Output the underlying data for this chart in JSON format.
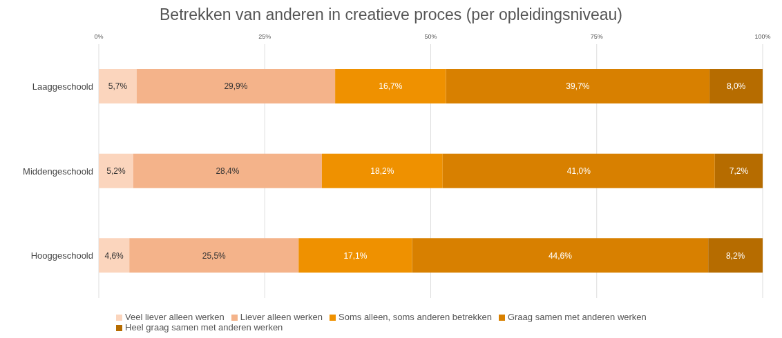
{
  "chart_data": {
    "type": "bar",
    "orientation": "horizontal",
    "stacked": true,
    "title": "Betrekken van anderen in creatieve proces (per opleidingsniveau)",
    "categories": [
      "Laaggeschoold",
      "Middengeschoold",
      "Hooggeschoold"
    ],
    "series": [
      {
        "name": "Veel liever alleen werken",
        "color": "#fbd5bd",
        "values": [
          5.7,
          5.2,
          4.6
        ],
        "value_labels": [
          "5,7%",
          "5,2%",
          "4,6%"
        ]
      },
      {
        "name": "Liever alleen werken",
        "color": "#f4b38a",
        "values": [
          29.9,
          28.4,
          25.5
        ],
        "value_labels": [
          "29,9%",
          "28,4%",
          "25,5%"
        ]
      },
      {
        "name": "Soms alleen, soms anderen betrekken",
        "color": "#ef9100",
        "values": [
          16.7,
          18.2,
          17.1
        ],
        "value_labels": [
          "16,7%",
          "18,2%",
          "17,1%"
        ]
      },
      {
        "name": "Graag samen met anderen werken",
        "color": "#d88000",
        "values": [
          39.7,
          41.0,
          44.6
        ],
        "value_labels": [
          "39,7%",
          "41,0%",
          "44,6%"
        ]
      },
      {
        "name": "Heel graag samen met anderen werken",
        "color": "#b66c00",
        "values": [
          8.0,
          7.2,
          8.2
        ],
        "value_labels": [
          "8,0%",
          "7,2%",
          "8,2%"
        ]
      }
    ],
    "xlim": [
      0,
      100
    ],
    "xticks": [
      {
        "value": 0,
        "label": "0%"
      },
      {
        "value": 25,
        "label": "25%"
      },
      {
        "value": 50,
        "label": "50%"
      },
      {
        "value": 75,
        "label": "75%"
      },
      {
        "value": 100,
        "label": "100%"
      }
    ],
    "grid": "x",
    "legend": "bottom"
  }
}
